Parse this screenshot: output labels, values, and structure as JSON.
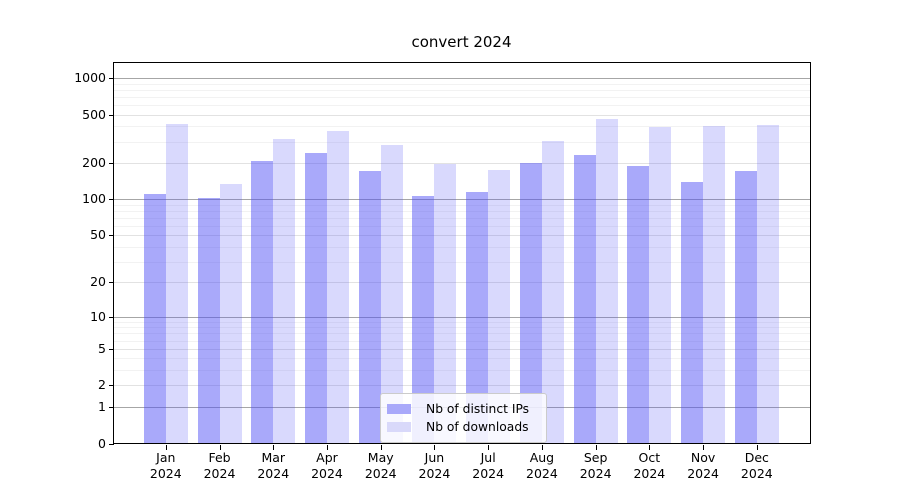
{
  "title": "convert 2024",
  "chart_data": {
    "type": "bar",
    "title": "convert 2024",
    "xlabel": "",
    "ylabel": "",
    "categories": [
      "Jan 2024",
      "Feb 2024",
      "Mar 2024",
      "Apr 2024",
      "May 2024",
      "Jun 2024",
      "Jul 2024",
      "Aug 2024",
      "Sep 2024",
      "Oct 2024",
      "Nov 2024",
      "Dec 2024"
    ],
    "series": [
      {
        "name": "Nb of distinct IPs",
        "color": "#a9a9fa",
        "fill_rgba": "rgba(80,80,245,0.49)",
        "values": [
          111,
          102,
          206,
          243,
          172,
          106,
          114,
          199,
          234,
          187,
          138,
          172
        ]
      },
      {
        "name": "Nb of downloads",
        "color": "#d9d9fa",
        "fill_rgba": "rgba(80,80,245,0.22)",
        "values": [
          422,
          134,
          317,
          369,
          283,
          197,
          176,
          301,
          463,
          392,
          400,
          413
        ]
      }
    ],
    "yscale": "log1p",
    "ylim": [
      0,
      1360
    ],
    "ytick_values": [
      0,
      1,
      2,
      5,
      10,
      20,
      50,
      100,
      200,
      500,
      1000
    ],
    "ytick_labels": [
      "0",
      "1",
      "2",
      "5",
      "10",
      "20",
      "50",
      "100",
      "200",
      "500",
      "1000"
    ],
    "minor_gridline_values": [
      3,
      4,
      6,
      7,
      8,
      9,
      30,
      40,
      60,
      70,
      80,
      90,
      300,
      400,
      600,
      700,
      800,
      900
    ],
    "grid": true,
    "legend_position": "lower center",
    "grid_colors": {
      "decade": "#a6a6a6",
      "labeled": "#e2e2e2",
      "minor": "#f2f2f2"
    }
  }
}
